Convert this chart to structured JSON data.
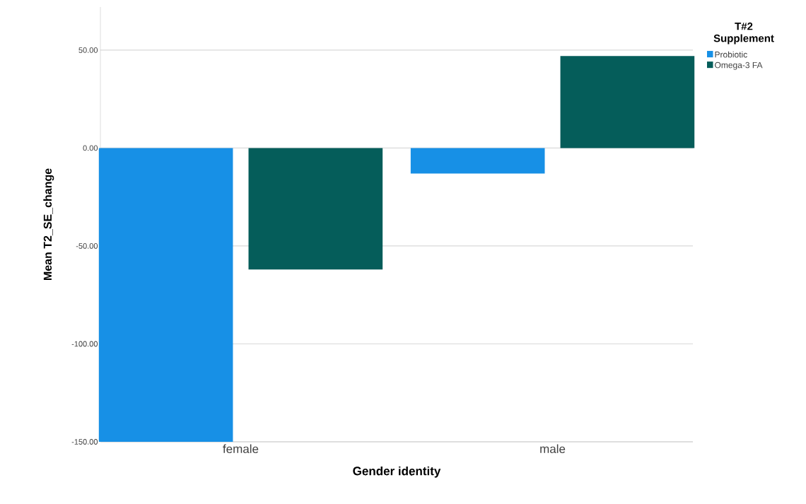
{
  "chart_data": {
    "type": "bar",
    "xlabel": "Gender identity",
    "ylabel": "Mean T2_SE_change",
    "legend_title": "T#2 Supplement",
    "categories": [
      "female",
      "male"
    ],
    "series": [
      {
        "name": "Probiotic",
        "color": "#1790e6",
        "values": [
          -150,
          -13
        ]
      },
      {
        "name": "Omega-3 FA",
        "color": "#055d5a",
        "values": [
          -62,
          47
        ]
      }
    ],
    "ylim": [
      -150,
      72
    ],
    "yticks": [
      {
        "value": -150,
        "label": "-150.00"
      },
      {
        "value": -100,
        "label": "-100.00"
      },
      {
        "value": -50,
        "label": "-50.00"
      },
      {
        "value": 0,
        "label": "0.00"
      },
      {
        "value": 50,
        "label": "50.00"
      }
    ],
    "grid": "y",
    "legend": "top right"
  }
}
